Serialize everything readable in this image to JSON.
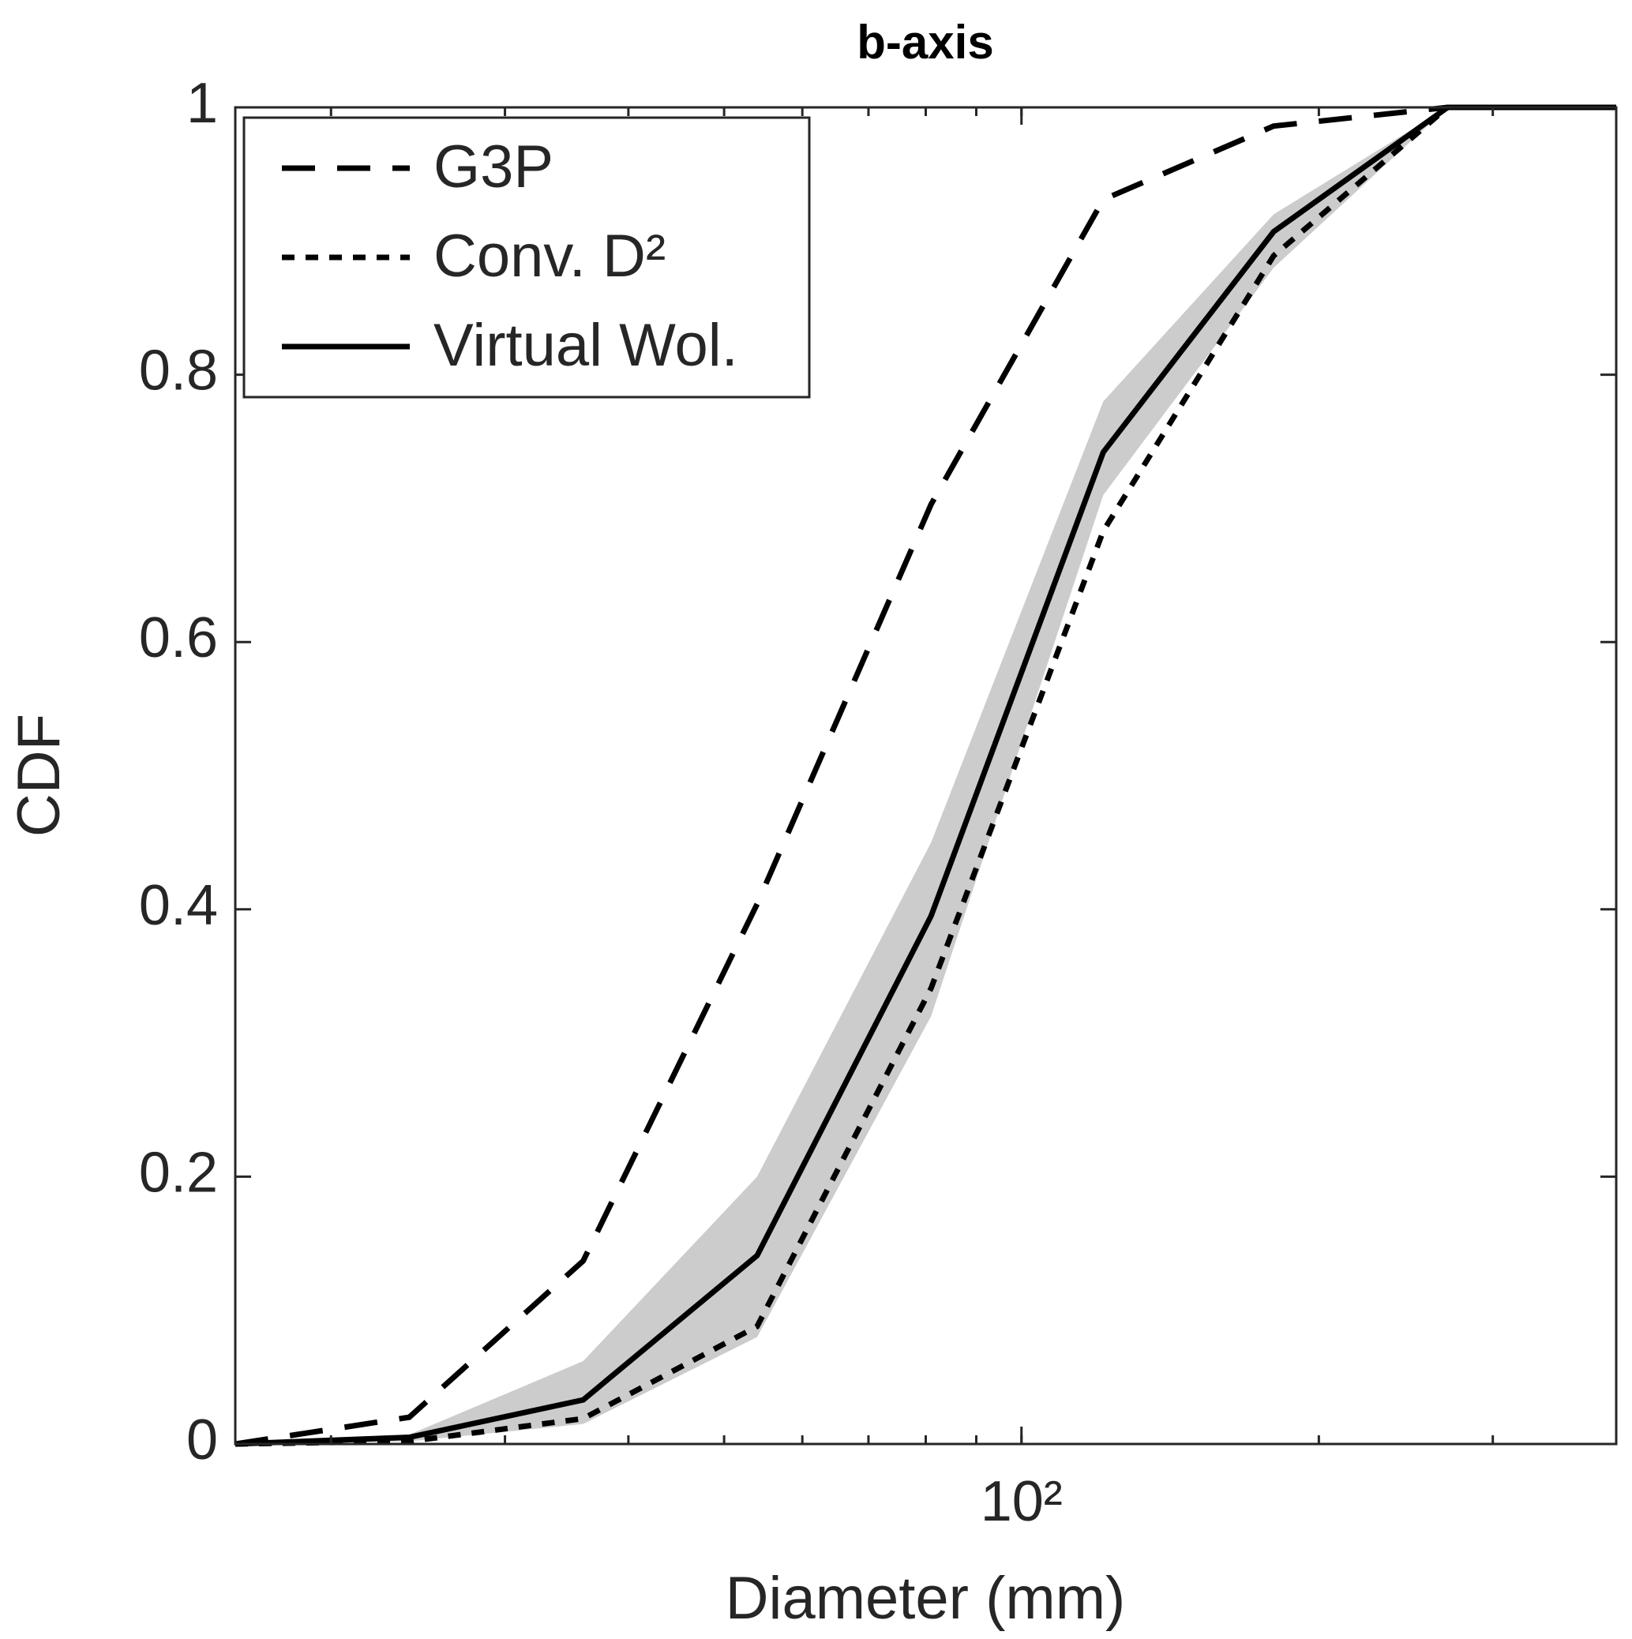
{
  "chart_data": {
    "type": "line",
    "title": "b-axis",
    "xlabel": "Diameter (mm)",
    "ylabel": "CDF",
    "x": [
      16,
      24,
      36,
      54,
      81,
      121,
      180,
      270,
      400
    ],
    "xscale": "log",
    "xlim": [
      16,
      400
    ],
    "xticks": [
      {
        "value": 100,
        "label": "10²"
      }
    ],
    "ylim": [
      0,
      1
    ],
    "yticks": [
      0,
      0.2,
      0.4,
      0.6,
      0.8,
      1
    ],
    "grid": false,
    "legend": "upper left",
    "band": {
      "color": "#cccccc",
      "upper": [
        0,
        0.007,
        0.062,
        0.2,
        0.45,
        0.78,
        0.92,
        1,
        1
      ],
      "lower": [
        0,
        0.002,
        0.015,
        0.08,
        0.32,
        0.71,
        0.88,
        1,
        1
      ]
    },
    "series": [
      {
        "name": "G3P",
        "color": "#000000",
        "style": "dashed",
        "values": [
          0,
          0.02,
          0.137,
          0.404,
          0.703,
          0.931,
          0.986,
          1,
          1
        ]
      },
      {
        "name": "Conv. D²",
        "color": "#000000",
        "style": "dotted",
        "values": [
          0,
          0.002,
          0.019,
          0.088,
          0.341,
          0.683,
          0.889,
          1,
          1
        ]
      },
      {
        "name": "Virtual Wol.",
        "color": "#000000",
        "style": "solid",
        "values": [
          0,
          0.005,
          0.033,
          0.141,
          0.395,
          0.742,
          0.907,
          1,
          1
        ]
      }
    ]
  }
}
